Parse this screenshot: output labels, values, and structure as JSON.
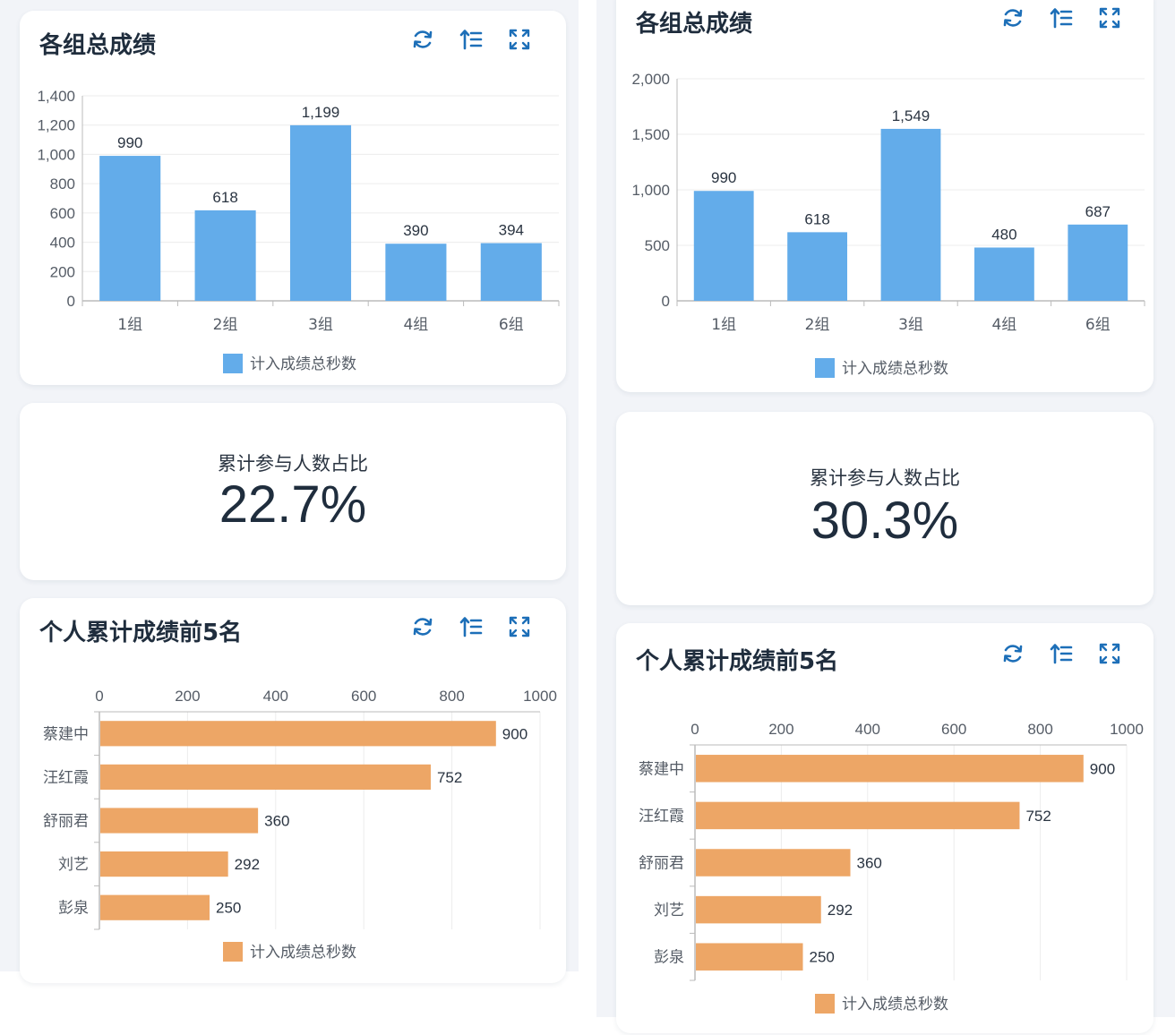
{
  "colors": {
    "bar_blue": "#63acea",
    "bar_orange": "#eda666",
    "icon": "#1d6fb8"
  },
  "icons": [
    "refresh-icon",
    "sort-list-icon",
    "fullscreen-icon"
  ],
  "left": {
    "group_card": {
      "title": "各组总成绩"
    },
    "stat_card": {
      "label": "累计参与人数占比",
      "value": "22.7%"
    },
    "person_card": {
      "title": "个人累计成绩前5名"
    }
  },
  "right": {
    "group_card": {
      "title": "各组总成绩"
    },
    "stat_card": {
      "label": "累计参与人数占比",
      "value": "30.3%"
    },
    "person_card": {
      "title": "个人累计成绩前5名"
    }
  },
  "chart_data": [
    {
      "type": "bar",
      "categories": [
        "1组",
        "2组",
        "3组",
        "4组",
        "6组"
      ],
      "series": [
        {
          "name": "计入成绩总秒数",
          "values": [
            990,
            618,
            1199,
            390,
            394
          ]
        }
      ],
      "yticks": [
        "0",
        "200",
        "400",
        "600",
        "800",
        "1,000",
        "1,200",
        "1,400"
      ],
      "ylim": [
        0,
        1400
      ],
      "data_labels": [
        "990",
        "618",
        "1,199",
        "390",
        "394"
      ],
      "legend": "bottom",
      "grid": true
    },
    {
      "type": "bar",
      "orientation": "horizontal",
      "categories": [
        "蔡建中",
        "汪红霞",
        "舒丽君",
        "刘艺",
        "彭泉"
      ],
      "series": [
        {
          "name": "计入成绩总秒数",
          "values": [
            900,
            752,
            360,
            292,
            250
          ]
        }
      ],
      "xticks": [
        "0",
        "200",
        "400",
        "600",
        "800",
        "1000"
      ],
      "xlim": [
        0,
        1000
      ],
      "data_labels": [
        "900",
        "752",
        "360",
        "292",
        "250"
      ],
      "legend": "bottom",
      "grid": true
    },
    {
      "type": "bar",
      "categories": [
        "1组",
        "2组",
        "3组",
        "4组",
        "6组"
      ],
      "series": [
        {
          "name": "计入成绩总秒数",
          "values": [
            990,
            618,
            1549,
            480,
            687
          ]
        }
      ],
      "yticks": [
        "0",
        "500",
        "1,000",
        "1,500",
        "2,000"
      ],
      "ylim": [
        0,
        2000
      ],
      "data_labels": [
        "990",
        "618",
        "1,549",
        "480",
        "687"
      ],
      "legend": "bottom",
      "grid": true
    },
    {
      "type": "bar",
      "orientation": "horizontal",
      "categories": [
        "蔡建中",
        "汪红霞",
        "舒丽君",
        "刘艺",
        "彭泉"
      ],
      "series": [
        {
          "name": "计入成绩总秒数",
          "values": [
            900,
            752,
            360,
            292,
            250
          ]
        }
      ],
      "xticks": [
        "0",
        "200",
        "400",
        "600",
        "800",
        "1000"
      ],
      "xlim": [
        0,
        1000
      ],
      "data_labels": [
        "900",
        "752",
        "360",
        "292",
        "250"
      ],
      "legend": "bottom",
      "grid": true
    }
  ]
}
